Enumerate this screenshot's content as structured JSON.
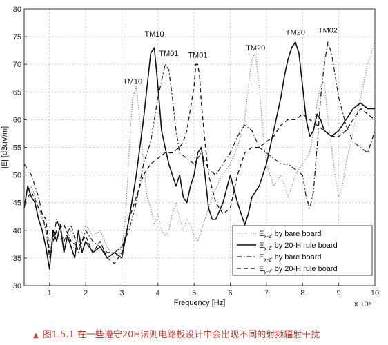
{
  "caption": {
    "marker": "▲",
    "text": "图1.5.1 在一些遵守20H法则电路板设计中会出现不同的射频辐射干扰"
  },
  "chart_data": {
    "type": "line",
    "xlabel": "Frequency [Hz]",
    "x_exponent": "x 10⁹",
    "ylabel": "|E| [dBuV/m]",
    "xlim": [
      0.3,
      10
    ],
    "ylim": [
      30,
      80
    ],
    "xticks": [
      1,
      2,
      3,
      4,
      5,
      6,
      7,
      8,
      9,
      10
    ],
    "yticks": [
      30,
      35,
      40,
      45,
      50,
      55,
      60,
      65,
      70,
      75,
      80
    ],
    "grid": true,
    "legend_position": "bottom-right",
    "annotations": [
      {
        "text": "TM10",
        "x": 3.3,
        "y": 66.5
      },
      {
        "text": "TM10",
        "x": 3.9,
        "y": 75
      },
      {
        "text": "TM01",
        "x": 4.3,
        "y": 71.5
      },
      {
        "text": "TM01",
        "x": 5.1,
        "y": 71.2
      },
      {
        "text": "TM20",
        "x": 6.7,
        "y": 72.5
      },
      {
        "text": "TM20",
        "x": 7.8,
        "y": 75.3
      },
      {
        "text": "TM02",
        "x": 8.7,
        "y": 75.7
      }
    ],
    "series": [
      {
        "name": "E_{x-z'} by bare board",
        "legend_main": "E",
        "legend_sub": "x-z'",
        "legend_rest": " by bare board",
        "style": "dotted",
        "color": "#8a8a8a",
        "x": [
          0.3,
          0.5,
          0.7,
          0.9,
          1.0,
          1.2,
          1.4,
          1.6,
          1.8,
          2.0,
          2.2,
          2.4,
          2.6,
          2.8,
          3.0,
          3.1,
          3.2,
          3.3,
          3.4,
          3.5,
          3.6,
          3.7,
          3.8,
          3.9,
          4.0,
          4.1,
          4.2,
          4.3,
          4.4,
          4.5,
          4.6,
          4.7,
          4.8,
          4.9,
          5.0,
          5.1,
          5.2,
          5.3,
          5.5,
          5.7,
          6.0,
          6.2,
          6.4,
          6.5,
          6.6,
          6.7,
          6.8,
          6.9,
          7.0,
          7.2,
          7.4,
          7.6,
          7.8,
          8.0,
          8.2,
          8.3,
          8.4,
          8.5,
          8.6,
          8.7,
          8.8,
          8.9,
          9.0,
          9.1,
          9.2,
          9.4,
          9.6,
          9.8,
          10.0
        ],
        "y": [
          46,
          48,
          44,
          40,
          38,
          40,
          37,
          40,
          38,
          41,
          39,
          40,
          37,
          35,
          37,
          42,
          54,
          64,
          66,
          60,
          52,
          46,
          44,
          41,
          43,
          40,
          39,
          40,
          43,
          45,
          42,
          40,
          42,
          41,
          39,
          38,
          40,
          42,
          46,
          49,
          52,
          55,
          60,
          66,
          71,
          72,
          66,
          58,
          52,
          48,
          50,
          46,
          50,
          52,
          54,
          58,
          63,
          66,
          67,
          60,
          55,
          50,
          46,
          48,
          52,
          58,
          64,
          70,
          74
        ]
      },
      {
        "name": "E_{y-z'} by 20-H rule board",
        "legend_main": "E",
        "legend_sub": "y-z'",
        "legend_rest": " by 20-H rule board",
        "style": "solid",
        "color": "#111111",
        "x": [
          0.3,
          0.4,
          0.5,
          0.6,
          0.7,
          0.8,
          0.9,
          1.0,
          1.1,
          1.2,
          1.3,
          1.4,
          1.5,
          1.6,
          1.7,
          1.8,
          1.9,
          2.0,
          2.2,
          2.4,
          2.6,
          2.8,
          3.0,
          3.2,
          3.4,
          3.6,
          3.7,
          3.8,
          3.9,
          4.0,
          4.1,
          4.2,
          4.3,
          4.4,
          4.5,
          4.6,
          4.7,
          4.8,
          4.9,
          5.0,
          5.1,
          5.2,
          5.3,
          5.4,
          5.5,
          5.6,
          5.8,
          6.0,
          6.2,
          6.4,
          6.5,
          6.6,
          6.8,
          7.0,
          7.2,
          7.4,
          7.5,
          7.6,
          7.7,
          7.8,
          7.9,
          8.0,
          8.1,
          8.2,
          8.3,
          8.4,
          8.5,
          8.6,
          8.8,
          9.0,
          9.2,
          9.4,
          9.6,
          9.8,
          10.0
        ],
        "y": [
          44,
          48,
          46,
          45,
          42,
          40,
          37,
          33,
          40,
          38,
          41,
          36,
          39,
          37,
          35,
          40,
          36,
          38,
          36,
          37,
          35,
          36,
          35,
          42,
          50,
          60,
          66,
          72,
          73,
          66,
          58,
          55,
          52,
          50,
          48,
          50,
          46,
          45,
          48,
          50,
          54,
          55,
          50,
          44,
          42,
          42,
          45,
          50,
          45,
          41,
          43,
          46,
          48,
          52,
          58,
          64,
          68,
          71,
          73,
          74,
          72,
          66,
          60,
          57,
          58,
          61,
          60,
          58,
          57,
          58,
          60,
          62,
          63,
          62,
          62
        ]
      },
      {
        "name": "E_{x-z'} by bare board",
        "legend_main": "E",
        "legend_sub": "x-z'",
        "legend_rest": " by bare board",
        "style": "dashdot",
        "color": "#222222",
        "x": [
          0.3,
          0.5,
          0.7,
          0.9,
          1.0,
          1.2,
          1.4,
          1.6,
          1.8,
          2.0,
          2.2,
          2.4,
          2.6,
          2.8,
          3.0,
          3.2,
          3.4,
          3.6,
          3.8,
          3.9,
          4.0,
          4.1,
          4.2,
          4.3,
          4.4,
          4.5,
          4.6,
          4.8,
          5.0,
          5.2,
          5.4,
          5.6,
          5.8,
          6.0,
          6.2,
          6.4,
          6.6,
          6.8,
          7.0,
          7.2,
          7.4,
          7.6,
          7.8,
          8.0,
          8.1,
          8.2,
          8.3,
          8.4,
          8.5,
          8.6,
          8.7,
          8.8,
          9.0,
          9.2,
          9.4,
          9.6,
          9.8,
          10.0
        ],
        "y": [
          52,
          50,
          46,
          40,
          35,
          42,
          38,
          41,
          36,
          40,
          38,
          37,
          36,
          36,
          37,
          40,
          45,
          52,
          56,
          60,
          64,
          67,
          70,
          69,
          64,
          58,
          54,
          53,
          52,
          54,
          51,
          50,
          52,
          54,
          57,
          59,
          58,
          55,
          54,
          53,
          52,
          52,
          51,
          50,
          46,
          44,
          47,
          55,
          64,
          70,
          74,
          72,
          64,
          59,
          56,
          55,
          54,
          58
        ]
      },
      {
        "name": "E_{y-z'} by 20-H rule board",
        "legend_main": "E",
        "legend_sub": "y-z'",
        "legend_rest": " by 20-H rule board",
        "style": "dashed",
        "color": "#111111",
        "x": [
          0.3,
          0.5,
          0.7,
          0.9,
          1.0,
          1.2,
          1.4,
          1.6,
          1.8,
          2.0,
          2.2,
          2.4,
          2.6,
          2.8,
          3.0,
          3.2,
          3.4,
          3.6,
          3.8,
          4.0,
          4.2,
          4.4,
          4.6,
          4.7,
          4.8,
          4.9,
          5.0,
          5.05,
          5.1,
          5.15,
          5.2,
          5.3,
          5.4,
          5.6,
          5.8,
          6.0,
          6.2,
          6.4,
          6.6,
          6.8,
          7.0,
          7.2,
          7.4,
          7.6,
          7.8,
          8.0,
          8.2,
          8.4,
          8.6,
          8.8,
          9.0,
          9.2,
          9.4,
          9.6,
          9.8,
          10.0
        ],
        "y": [
          45,
          47,
          44,
          42,
          36,
          40,
          41,
          38,
          37,
          39,
          36,
          38,
          35,
          34,
          36,
          42,
          46,
          50,
          52,
          53,
          54,
          54,
          55,
          56,
          58,
          62,
          66,
          70,
          70,
          68,
          63,
          56,
          50,
          45,
          43,
          44,
          50,
          54,
          55,
          55,
          56,
          57,
          59,
          60,
          60,
          61,
          60,
          59,
          58,
          57,
          57,
          58,
          60,
          62,
          61,
          60
        ]
      }
    ]
  }
}
